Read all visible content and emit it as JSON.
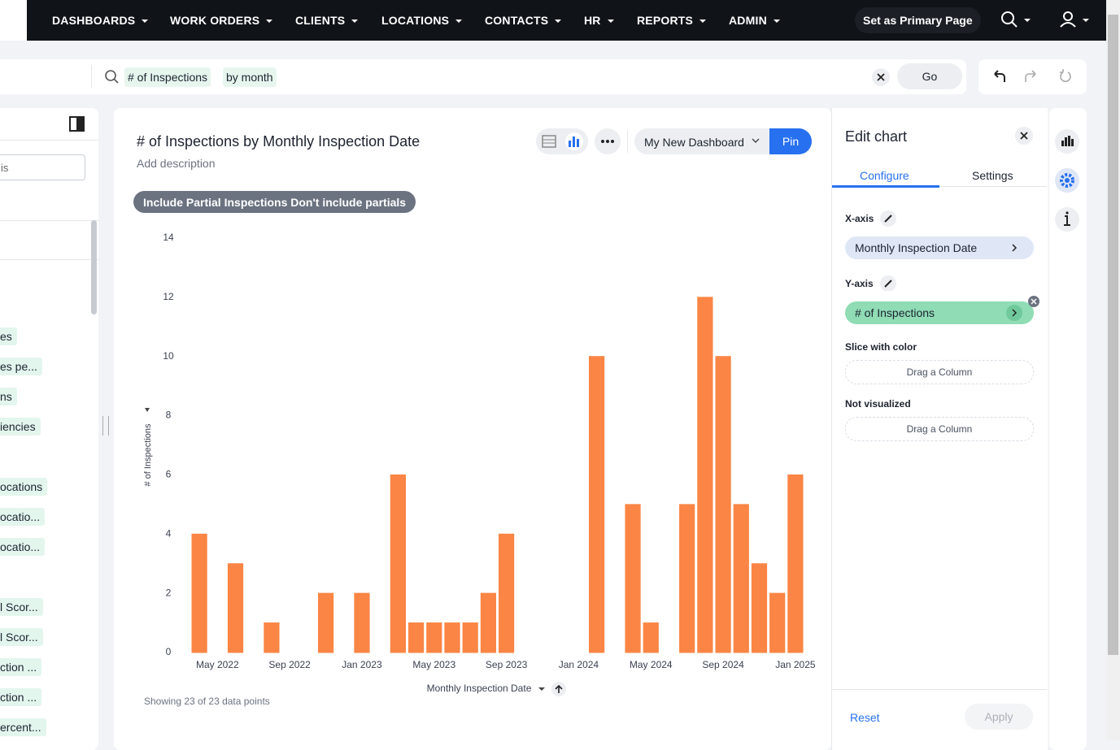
{
  "nav": {
    "items": [
      "DASHBOARDS",
      "WORK ORDERS",
      "CLIENTS",
      "LOCATIONS",
      "CONTACTS",
      "HR",
      "REPORTS",
      "ADMIN"
    ],
    "primary_button": "Set as Primary Page"
  },
  "search": {
    "tokens": [
      "# of Inspections",
      "by month"
    ],
    "go": "Go"
  },
  "sidebar": {
    "input": "is",
    "items": [
      "es",
      "es pe...",
      "ns",
      "iencies",
      "ocations",
      "ocatio...",
      "ocatio...",
      "l Scor...",
      "l Scor...",
      "ction ...",
      "ction ...",
      "ercent..."
    ]
  },
  "card": {
    "description": "Add description",
    "dashboard": "My New Dashboard",
    "pin": "Pin",
    "filter": "Include Partial Inspections Don't include partials",
    "footer": "Showing 23 of 23 data points"
  },
  "chart_data": {
    "type": "bar",
    "title": "# of Inspections by Monthly Inspection Date",
    "x_label": "Monthly Inspection Date",
    "y_label": "# of Inspections",
    "categories": [
      null,
      "May 2022",
      null,
      null,
      null,
      "Sep 2022",
      null,
      null,
      null,
      "Jan 2023",
      null,
      null,
      null,
      "May 2023",
      null,
      null,
      null,
      "Sep 2023",
      null,
      null,
      null,
      "Jan 2024",
      null,
      null,
      null,
      "May 2024",
      null,
      null,
      null,
      "Sep 2024",
      null,
      null,
      null,
      "Jan 2025"
    ],
    "values": [
      4,
      null,
      3,
      null,
      1,
      null,
      null,
      2,
      null,
      2,
      null,
      6,
      1,
      1,
      1,
      1,
      2,
      4,
      null,
      null,
      null,
      null,
      10,
      null,
      5,
      1,
      0,
      5,
      12,
      10,
      5,
      3,
      2,
      6
    ],
    "color": "#fa8544",
    "ylim": [
      0,
      14
    ],
    "yticks": [
      0,
      2,
      4,
      6,
      8,
      10,
      12,
      14
    ],
    "grid": false
  },
  "edit": {
    "title": "Edit chart",
    "tabs": [
      "Configure",
      "Settings"
    ],
    "x_axis_label": "X-axis",
    "x_axis_value": "Monthly Inspection Date",
    "y_axis_label": "Y-axis",
    "y_axis_value": "# of Inspections",
    "slice_label": "Slice with color",
    "slice_placeholder": "Drag a Column",
    "hidden_label": "Not visualized",
    "hidden_placeholder": "Drag a Column",
    "reset": "Reset",
    "apply": "Apply"
  }
}
